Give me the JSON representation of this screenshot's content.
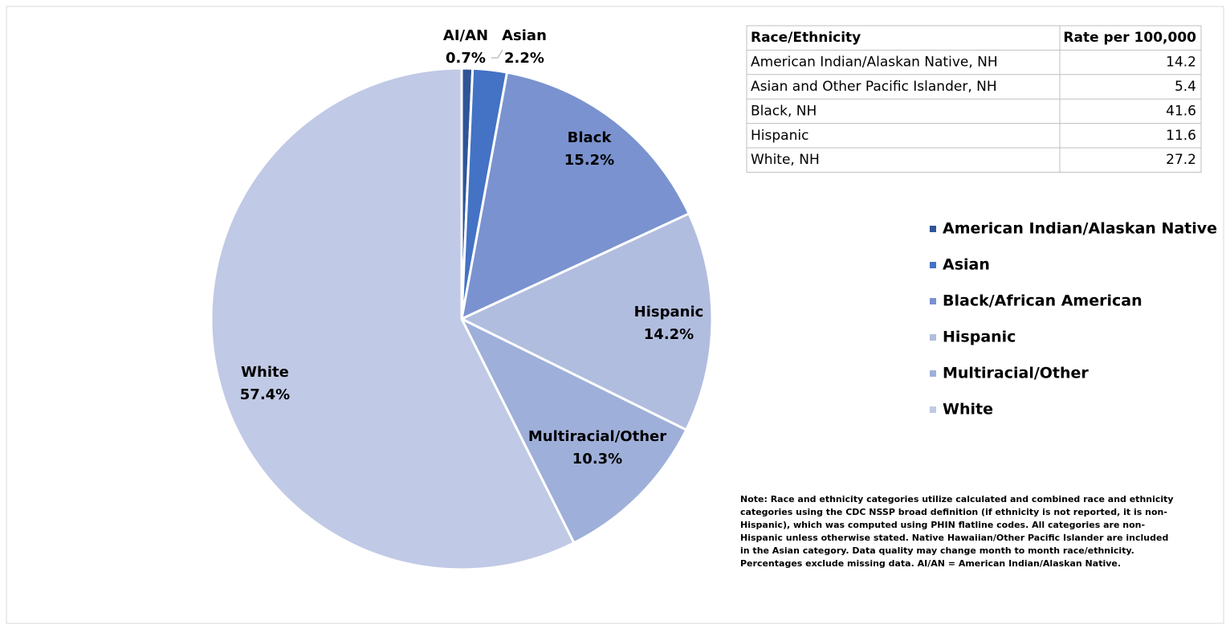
{
  "chart_data": {
    "type": "pie",
    "categories": [
      "American Indian/Alaskan Native",
      "Asian",
      "Black/African American",
      "Hispanic",
      "Multiracial/Other",
      "White"
    ],
    "slice_labels": [
      "AI/AN",
      "Asian",
      "Black",
      "Hispanic",
      "Multiracial/Other",
      "White"
    ],
    "values": [
      0.7,
      2.2,
      15.2,
      14.2,
      10.3,
      57.4
    ],
    "value_labels": [
      "0.7%",
      "2.2%",
      "15.2%",
      "14.2%",
      "10.3%",
      "57.4%"
    ],
    "colors": [
      "#2f5597",
      "#4472c4",
      "#7a92cf",
      "#b1bddf",
      "#9eafd9",
      "#c0c9e5"
    ],
    "legend": "right"
  },
  "table": {
    "columns": [
      "Race/Ethnicity",
      "Rate per 100,000"
    ],
    "rows": [
      [
        "American Indian/Alaskan Native, NH",
        14.2
      ],
      [
        "Asian and Other Pacific Islander, NH",
        5.4
      ],
      [
        "Black, NH",
        41.6
      ],
      [
        "Hispanic",
        11.6
      ],
      [
        "White, NH",
        27.2
      ]
    ]
  },
  "note": "Note: Race and ethnicity categories utilize calculated and combined race and ethnicity categories using the CDC NSSP broad definition (if ethnicity is not reported, it is non-Hispanic), which was computed using PHIN flatline codes. All categories are non-Hispanic unless otherwise stated. Native Hawaiian/Other Pacific Islander are included in the Asian category. Data quality may change month to month race/ethnicity. Percentages exclude missing data. AI/AN = American Indian/Alaskan Native."
}
